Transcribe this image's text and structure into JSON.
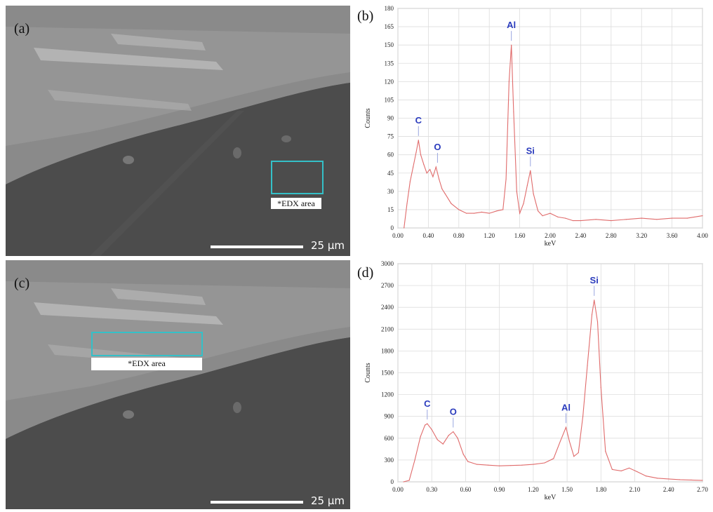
{
  "panels": {
    "a": {
      "label": "(a)",
      "edx_label": "*EDX area",
      "scale": "25 µm"
    },
    "b": {
      "label": "(b)"
    },
    "c": {
      "label": "(c)",
      "edx_label": "*EDX area",
      "scale": "25 µm"
    },
    "d": {
      "label": "(d)"
    }
  },
  "colors": {
    "spectrum": "#e06b6b",
    "peak_label": "#2a3bbd",
    "edx_box": "#34c0c8"
  },
  "chart_data": [
    {
      "id": "b",
      "type": "line",
      "xlabel": "keV",
      "ylabel": "Counts",
      "xlim": [
        0,
        4.0
      ],
      "ylim": [
        0,
        180
      ],
      "xticks": [
        "0.00",
        "0.40",
        "0.80",
        "1.20",
        "1.60",
        "2.00",
        "2.40",
        "2.80",
        "3.20",
        "3.60",
        "4.00"
      ],
      "yticks": [
        "0",
        "15",
        "30",
        "45",
        "60",
        "75",
        "90",
        "105",
        "120",
        "135",
        "150",
        "165",
        "180"
      ],
      "grid": true,
      "peaks": [
        {
          "label": "C",
          "x": 0.27,
          "y": 72
        },
        {
          "label": "O",
          "x": 0.52,
          "y": 50
        },
        {
          "label": "Al",
          "x": 1.49,
          "y": 150
        },
        {
          "label": "Si",
          "x": 1.74,
          "y": 47
        }
      ],
      "series": [
        {
          "x": [
            0.08,
            0.12,
            0.16,
            0.2,
            0.24,
            0.27,
            0.3,
            0.34,
            0.38,
            0.42,
            0.46,
            0.5,
            0.54,
            0.58,
            0.62,
            0.7,
            0.8,
            0.9,
            1.0,
            1.1,
            1.2,
            1.3,
            1.38,
            1.42,
            1.46,
            1.49,
            1.52,
            1.56,
            1.6,
            1.65,
            1.7,
            1.74,
            1.78,
            1.84,
            1.9,
            2.0,
            2.1,
            2.2,
            2.3,
            2.4,
            2.6,
            2.8,
            3.0,
            3.2,
            3.4,
            3.6,
            3.8,
            4.0
          ],
          "values": [
            0,
            20,
            38,
            50,
            62,
            72,
            60,
            52,
            45,
            48,
            42,
            50,
            40,
            32,
            28,
            20,
            15,
            12,
            12,
            13,
            12,
            14,
            15,
            40,
            120,
            150,
            95,
            30,
            12,
            20,
            35,
            47,
            28,
            14,
            10,
            12,
            9,
            8,
            6,
            6,
            7,
            6,
            7,
            8,
            7,
            8,
            8,
            10
          ]
        }
      ]
    },
    {
      "id": "d",
      "type": "line",
      "xlabel": "keV",
      "ylabel": "Counts",
      "xlim": [
        0,
        2.7
      ],
      "ylim": [
        0,
        3000
      ],
      "xticks": [
        "0.00",
        "0.30",
        "0.60",
        "0.90",
        "1.20",
        "1.50",
        "1.80",
        "2.10",
        "2.40",
        "2.70"
      ],
      "yticks": [
        "0",
        "300",
        "600",
        "900",
        "1200",
        "1500",
        "1800",
        "2100",
        "2400",
        "2700",
        "3000"
      ],
      "grid": true,
      "peaks": [
        {
          "label": "C",
          "x": 0.26,
          "y": 800
        },
        {
          "label": "O",
          "x": 0.49,
          "y": 690
        },
        {
          "label": "Al",
          "x": 1.49,
          "y": 750
        },
        {
          "label": "Si",
          "x": 1.74,
          "y": 2500
        }
      ],
      "series": [
        {
          "x": [
            0.05,
            0.1,
            0.15,
            0.2,
            0.24,
            0.26,
            0.3,
            0.35,
            0.4,
            0.45,
            0.49,
            0.53,
            0.58,
            0.62,
            0.7,
            0.8,
            0.9,
            1.0,
            1.1,
            1.2,
            1.3,
            1.38,
            1.44,
            1.49,
            1.52,
            1.56,
            1.6,
            1.64,
            1.68,
            1.72,
            1.74,
            1.77,
            1.8,
            1.84,
            1.9,
            1.98,
            2.05,
            2.12,
            2.2,
            2.3,
            2.4,
            2.5,
            2.6,
            2.7
          ],
          "values": [
            0,
            20,
            300,
            620,
            780,
            800,
            720,
            580,
            520,
            640,
            690,
            600,
            380,
            280,
            240,
            230,
            220,
            225,
            230,
            240,
            260,
            320,
            560,
            750,
            560,
            350,
            400,
            900,
            1600,
            2300,
            2500,
            2200,
            1300,
            420,
            170,
            150,
            190,
            140,
            80,
            50,
            40,
            30,
            25,
            20
          ]
        }
      ]
    }
  ]
}
